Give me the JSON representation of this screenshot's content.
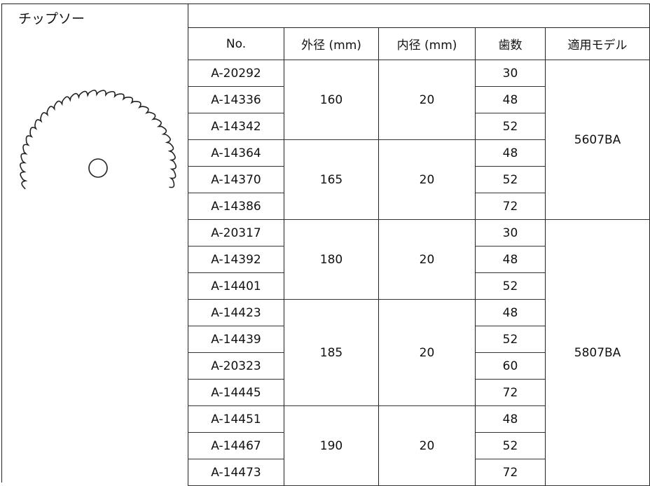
{
  "header": {
    "title": "チップソー"
  },
  "table": {
    "columns": [
      "No.",
      "外径 (mm)",
      "内径 (mm)",
      "歯数",
      "適用モデル"
    ],
    "sections": [
      {
        "model": "5607BA",
        "groups": [
          {
            "outer_diameter": 160,
            "inner_diameter": 20,
            "rows": [
              {
                "no": "A-20292",
                "teeth": 30
              },
              {
                "no": "A-14336",
                "teeth": 48
              },
              {
                "no": "A-14342",
                "teeth": 52
              }
            ]
          },
          {
            "outer_diameter": 165,
            "inner_diameter": 20,
            "rows": [
              {
                "no": "A-14364",
                "teeth": 48
              },
              {
                "no": "A-14370",
                "teeth": 52
              },
              {
                "no": "A-14386",
                "teeth": 72
              }
            ]
          }
        ]
      },
      {
        "model": "5807BA",
        "groups": [
          {
            "outer_diameter": 180,
            "inner_diameter": 20,
            "rows": [
              {
                "no": "A-20317",
                "teeth": 30
              },
              {
                "no": "A-14392",
                "teeth": 48
              },
              {
                "no": "A-14401",
                "teeth": 52
              }
            ]
          },
          {
            "outer_diameter": 185,
            "inner_diameter": 20,
            "rows": [
              {
                "no": "A-14423",
                "teeth": 48
              },
              {
                "no": "A-14439",
                "teeth": 52
              },
              {
                "no": "A-20323",
                "teeth": 60
              },
              {
                "no": "A-14445",
                "teeth": 72
              }
            ]
          },
          {
            "outer_diameter": 190,
            "inner_diameter": 20,
            "rows": [
              {
                "no": "A-14451",
                "teeth": 48
              },
              {
                "no": "A-14467",
                "teeth": 52
              },
              {
                "no": "A-14473",
                "teeth": 72
              }
            ]
          }
        ]
      }
    ]
  }
}
